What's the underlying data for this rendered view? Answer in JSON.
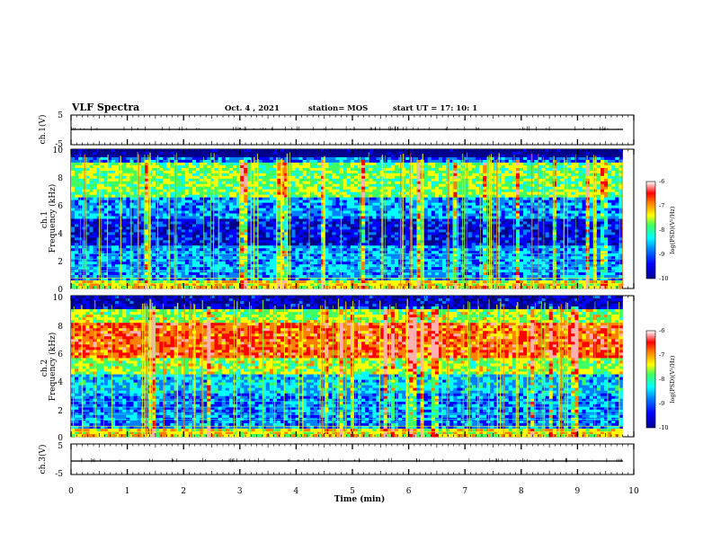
{
  "header": {
    "title": "VLF Spectra",
    "date": "Oct. 4 , 2021",
    "station": "station= MOS",
    "start_ut": "start UT =   17: 10: 1"
  },
  "chart_data": [
    {
      "type": "line",
      "panel": "ch1-waveform",
      "ylabel": "ch.1(V)",
      "yticks": [
        "5",
        "-5"
      ],
      "ylim": [
        -5,
        5
      ],
      "x_units": "min",
      "series": [
        {
          "x": [
            0,
            9.8
          ],
          "y": [
            0,
            0
          ]
        }
      ]
    },
    {
      "type": "heatmap",
      "panel": "ch1-spectrogram",
      "ylabel": "ch.1\nFrequency (kHz)",
      "yticks": [
        "10",
        "8",
        "6",
        "4",
        "2",
        "0"
      ],
      "ylim": [
        0,
        10
      ],
      "xlim": [
        0,
        9.8
      ],
      "colorbar": {
        "label": "log(PSD)(V²/Hz)",
        "range": [
          -10,
          -6
        ],
        "ticks": [
          "-6",
          "-7",
          "-8",
          "-9",
          "-10"
        ]
      },
      "bands_log_psd": [
        {
          "f_khz": [
            0,
            0.5
          ],
          "level": -7.5
        },
        {
          "f_khz": [
            0.5,
            3
          ],
          "level": -8.8
        },
        {
          "f_khz": [
            3,
            5
          ],
          "level": -9.4
        },
        {
          "f_khz": [
            5,
            6.5
          ],
          "level": -8.8
        },
        {
          "f_khz": [
            6.5,
            9
          ],
          "level": -7.9
        },
        {
          "f_khz": [
            9,
            9.5
          ],
          "level": -9.0
        },
        {
          "f_khz": [
            9.5,
            10
          ],
          "level": -10
        }
      ]
    },
    {
      "type": "heatmap",
      "panel": "ch2-spectrogram",
      "ylabel": "ch.2\nFrequency (kHz)",
      "yticks": [
        "10",
        "8",
        "6",
        "4",
        "2",
        "0"
      ],
      "ylim": [
        0,
        10
      ],
      "xlim": [
        0,
        9.8
      ],
      "colorbar": {
        "label": "log(PSD)(V²/Hz)",
        "range": [
          -10,
          -6
        ],
        "ticks": [
          "-6",
          "-7",
          "-8",
          "-9",
          "-10"
        ]
      },
      "bands_log_psd": [
        {
          "f_khz": [
            0,
            0.5
          ],
          "level": -7.5
        },
        {
          "f_khz": [
            0.5,
            3
          ],
          "level": -8.9
        },
        {
          "f_khz": [
            3,
            4.5
          ],
          "level": -8.6
        },
        {
          "f_khz": [
            4.5,
            5.5
          ],
          "level": -7.8
        },
        {
          "f_khz": [
            5.5,
            8
          ],
          "level": -6.9
        },
        {
          "f_khz": [
            8,
            9
          ],
          "level": -7.8
        },
        {
          "f_khz": [
            9,
            10
          ],
          "level": -9.6
        }
      ]
    },
    {
      "type": "line",
      "panel": "ch3-waveform",
      "ylabel": "ch.3(V)",
      "yticks": [
        "5",
        "-5"
      ],
      "ylim": [
        -5,
        5
      ],
      "x_units": "min",
      "series": [
        {
          "x": [
            0,
            9.8
          ],
          "y": [
            0,
            0
          ]
        }
      ]
    }
  ],
  "x_axis": {
    "label": "Time  (min)",
    "ticks": [
      "0",
      "1",
      "2",
      "3",
      "4",
      "5",
      "6",
      "7",
      "8",
      "9",
      "10"
    ],
    "xlim": [
      0,
      10
    ]
  },
  "colors": {
    "colormap": [
      "#00008f",
      "#0000ff",
      "#0080ff",
      "#00ffff",
      "#40ff60",
      "#ffff00",
      "#ff8000",
      "#ff0000",
      "#ffb0b0",
      "#ffffff"
    ],
    "waveform": "#000000"
  }
}
